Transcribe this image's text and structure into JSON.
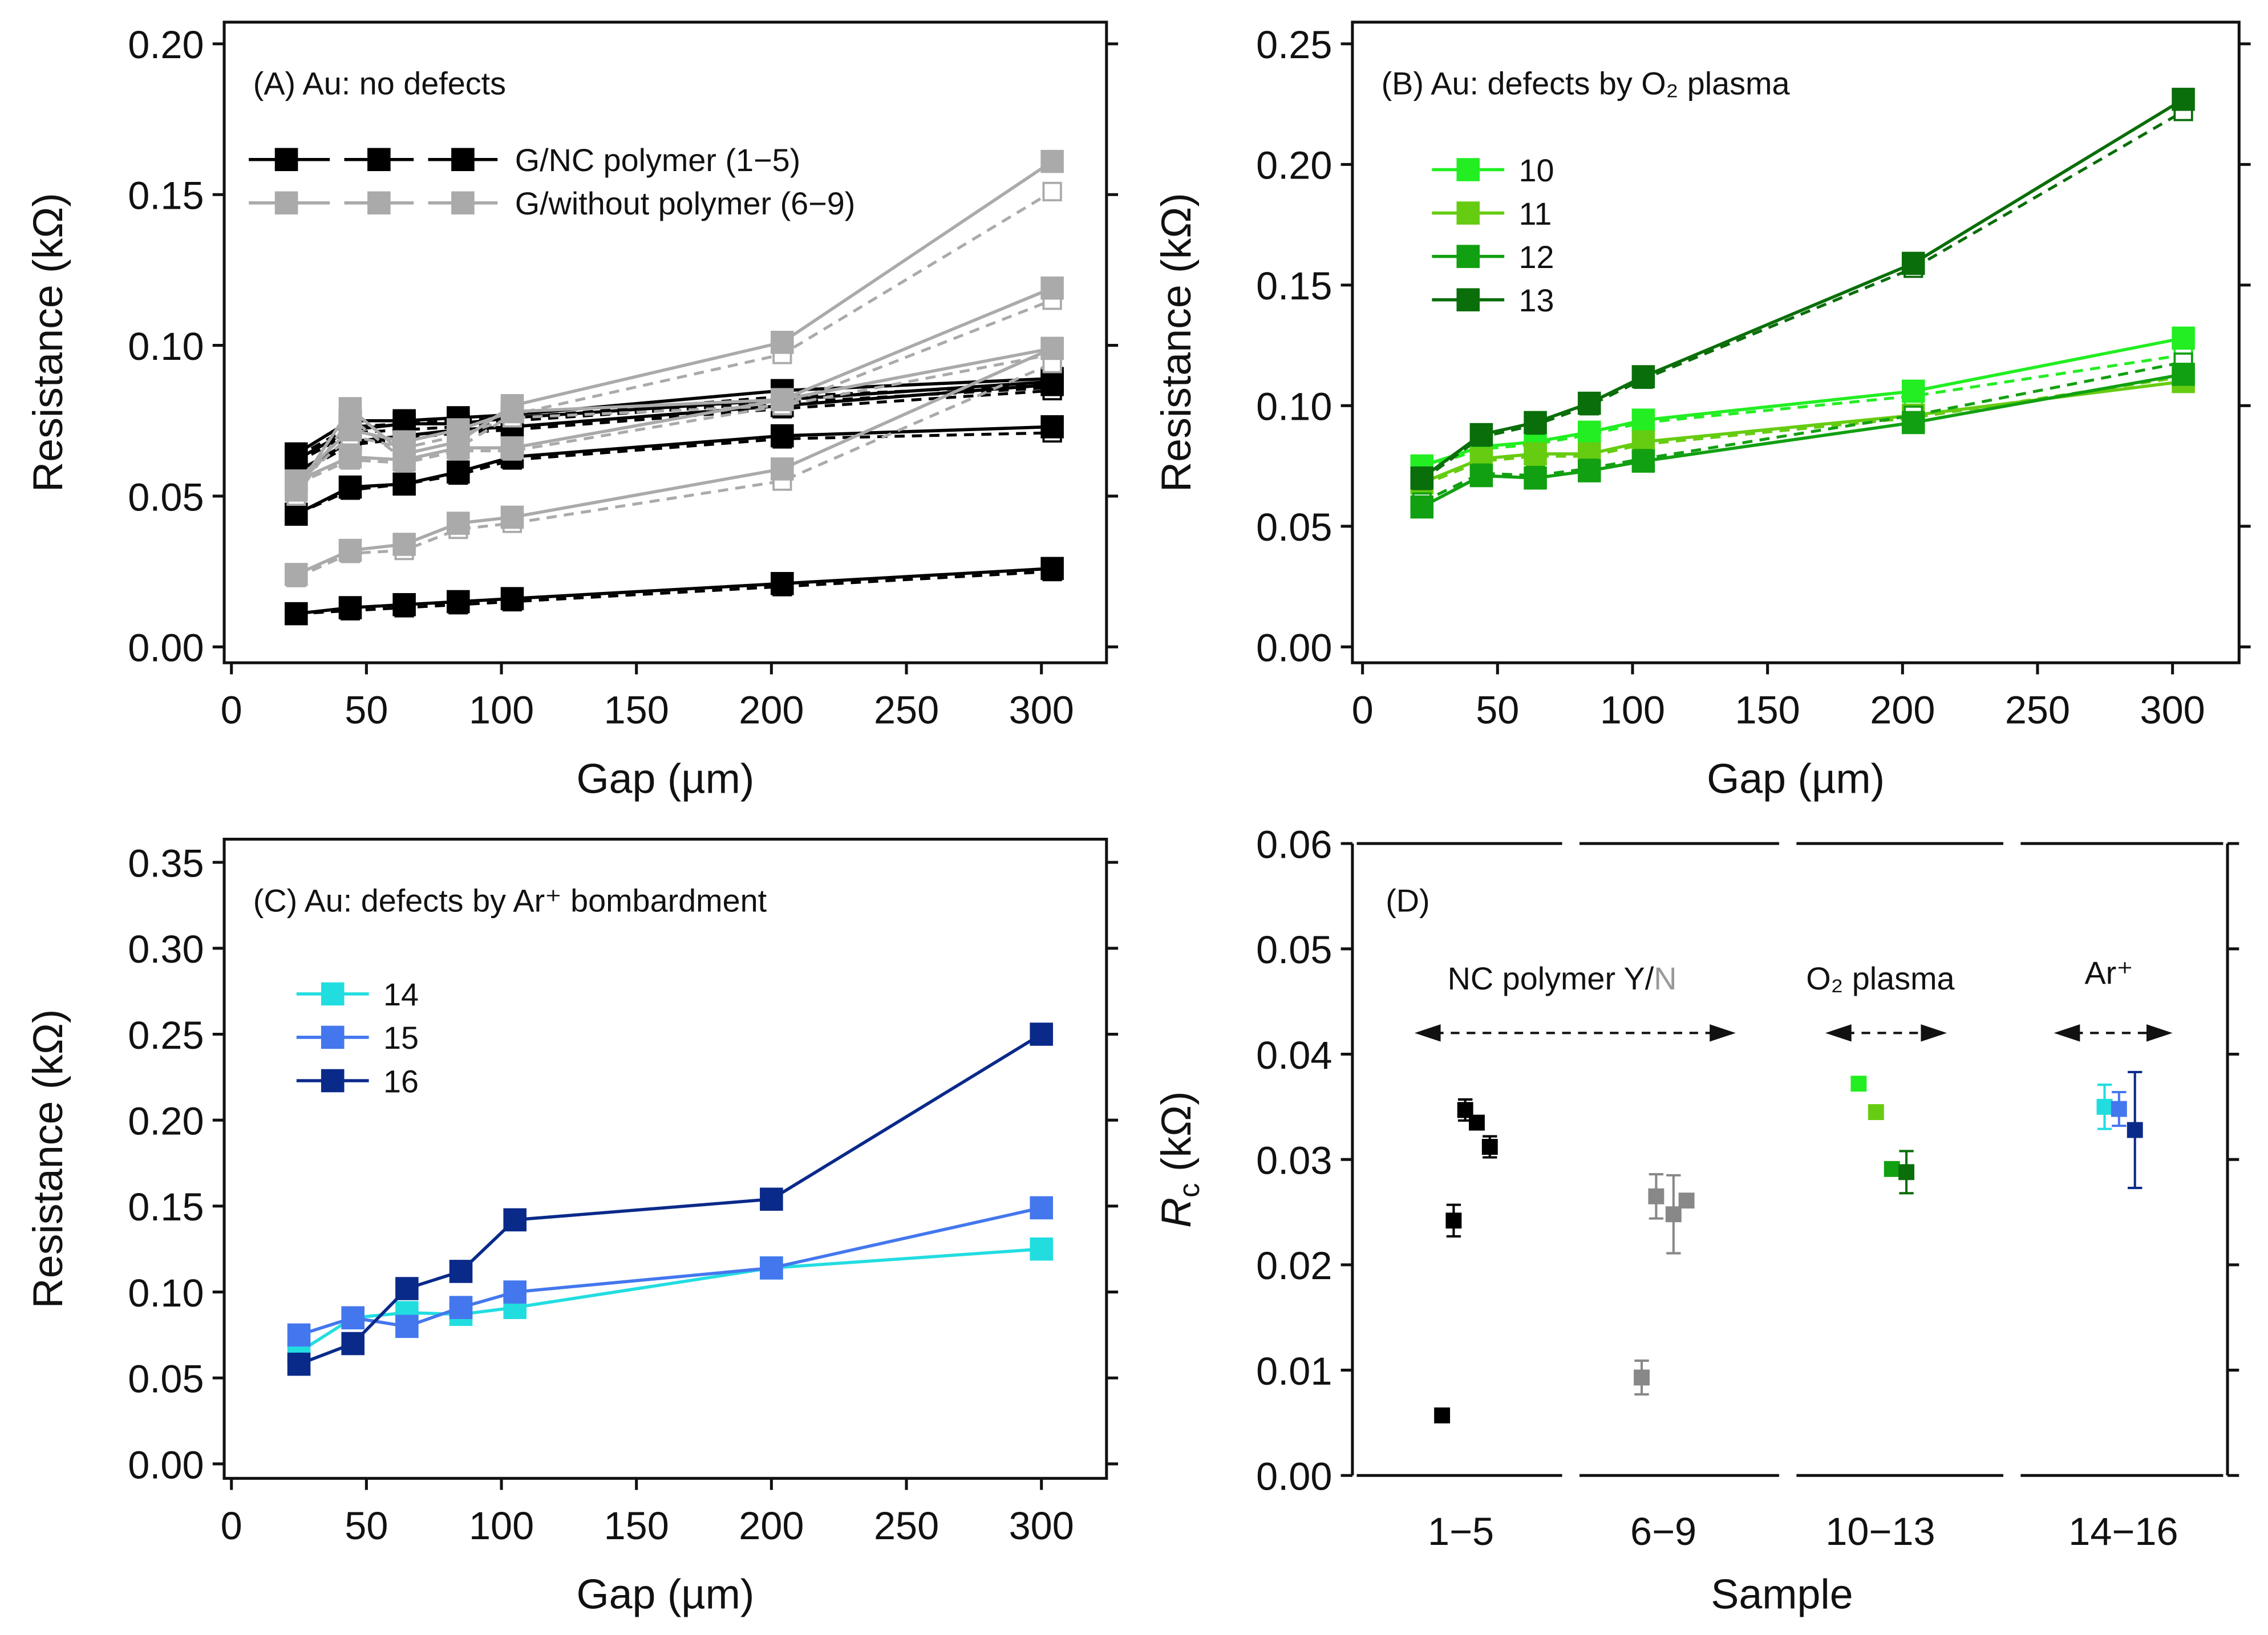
{
  "chart_data": [
    {
      "panel": "A",
      "type": "line",
      "title": "(A) Au: no defects",
      "xlabel": "Gap (µm)",
      "ylabel": "Resistance (kΩ)",
      "xlim": [
        0,
        330
      ],
      "ylim": [
        0,
        0.2
      ],
      "xticks": [
        "0",
        "50",
        "100",
        "150",
        "200",
        "250",
        "300"
      ],
      "yticks": [
        "0.00",
        "0.05",
        "0.10",
        "0.15",
        "0.20"
      ],
      "legend": {
        "placement": "top-left",
        "entries": [
          {
            "label": "G/NC polymer (1−5)",
            "color": "#000000"
          },
          {
            "label": "G/without polymer (6−9)",
            "color": "#aaaaaa"
          }
        ]
      },
      "x": [
        24,
        44,
        64,
        84,
        104,
        204,
        304
      ],
      "series": [
        {
          "group": "G/NC polymer (1−5)",
          "color": "#000000",
          "values": [
            0.064,
            0.075,
            0.075,
            0.076,
            0.077,
            0.085,
            0.089
          ],
          "dashed": [
            0.063,
            0.073,
            0.074,
            0.075,
            0.076,
            0.083,
            0.087
          ]
        },
        {
          "group": "G/NC polymer (1−5)",
          "color": "#000000",
          "values": [
            0.062,
            0.072,
            0.074,
            0.074,
            0.076,
            0.082,
            0.088
          ],
          "dashed": [
            0.061,
            0.071,
            0.072,
            0.073,
            0.075,
            0.081,
            0.086
          ]
        },
        {
          "group": "G/NC polymer (1−5)",
          "color": "#000000",
          "values": [
            0.058,
            0.068,
            0.07,
            0.072,
            0.073,
            0.08,
            0.087
          ],
          "dashed": [
            0.057,
            0.067,
            0.069,
            0.071,
            0.072,
            0.079,
            0.085
          ]
        },
        {
          "group": "G/NC polymer (1−5)",
          "color": "#000000",
          "values": [
            0.044,
            0.053,
            0.054,
            0.058,
            0.063,
            0.07,
            0.073
          ],
          "dashed": [
            0.044,
            0.052,
            0.054,
            0.057,
            0.062,
            0.069,
            0.071
          ]
        },
        {
          "group": "G/NC polymer (1−5)",
          "color": "#000000",
          "values": [
            0.011,
            0.013,
            0.014,
            0.015,
            0.016,
            0.021,
            0.026
          ],
          "dashed": [
            0.011,
            0.012,
            0.013,
            0.014,
            0.015,
            0.02,
            0.025
          ]
        },
        {
          "group": "G/without polymer (6−9)",
          "color": "#aaaaaa",
          "values": [
            0.052,
            0.079,
            0.064,
            0.068,
            0.08,
            0.101,
            0.161
          ],
          "dashed": [
            0.05,
            0.076,
            0.062,
            0.066,
            0.077,
            0.097,
            0.151
          ]
        },
        {
          "group": "G/without polymer (6−9)",
          "color": "#aaaaaa",
          "values": [
            0.055,
            0.072,
            0.068,
            0.072,
            0.078,
            0.082,
            0.119
          ],
          "dashed": [
            0.054,
            0.07,
            0.066,
            0.07,
            0.076,
            0.08,
            0.115
          ]
        },
        {
          "group": "G/without polymer (6−9)",
          "color": "#aaaaaa",
          "values": [
            0.055,
            0.063,
            0.062,
            0.066,
            0.066,
            0.082,
            0.099
          ],
          "dashed": [
            0.054,
            0.062,
            0.061,
            0.065,
            0.065,
            0.08,
            0.097
          ]
        },
        {
          "group": "G/without polymer (6−9)",
          "color": "#aaaaaa",
          "values": [
            0.024,
            0.032,
            0.034,
            0.041,
            0.043,
            0.059,
            0.099
          ],
          "dashed": [
            0.023,
            0.031,
            0.032,
            0.039,
            0.041,
            0.055,
            0.094
          ]
        }
      ]
    },
    {
      "panel": "B",
      "type": "line",
      "title": "(B) Au: defects by O₂ plasma",
      "xlabel": "Gap (µm)",
      "ylabel": "Resistance (kΩ)",
      "xlim": [
        0,
        330
      ],
      "ylim": [
        0,
        0.25
      ],
      "xticks": [
        "0",
        "50",
        "100",
        "150",
        "200",
        "250",
        "300"
      ],
      "yticks": [
        "0.00",
        "0.05",
        "0.10",
        "0.15",
        "0.20",
        "0.25"
      ],
      "legend": {
        "placement": "top-left"
      },
      "x": [
        22,
        44,
        64,
        84,
        104,
        204,
        304
      ],
      "series": [
        {
          "name": "10",
          "color": "#22ee22",
          "values": [
            0.075,
            0.083,
            0.085,
            0.089,
            0.094,
            0.106,
            0.128
          ],
          "dashed": [
            0.074,
            0.082,
            0.084,
            0.088,
            0.093,
            0.104,
            0.121
          ]
        },
        {
          "name": "11",
          "color": "#66cc11",
          "values": [
            0.068,
            0.078,
            0.08,
            0.08,
            0.085,
            0.096,
            0.11
          ],
          "dashed": [
            0.067,
            0.077,
            0.079,
            0.079,
            0.084,
            0.095,
            0.112
          ]
        },
        {
          "name": "12",
          "color": "#11a011",
          "values": [
            0.058,
            0.071,
            0.07,
            0.073,
            0.077,
            0.093,
            0.113
          ],
          "dashed": [
            0.06,
            0.072,
            0.071,
            0.074,
            0.078,
            0.096,
            0.118
          ]
        },
        {
          "name": "13",
          "color": "#0a6e0a",
          "values": [
            0.07,
            0.088,
            0.093,
            0.101,
            0.112,
            0.159,
            0.227
          ],
          "dashed": [
            0.069,
            0.087,
            0.092,
            0.1,
            0.111,
            0.157,
            0.222
          ]
        }
      ]
    },
    {
      "panel": "C",
      "type": "line",
      "title": "(C) Au: defects by Ar⁺ bombardment",
      "xlabel": "Gap (µm)",
      "ylabel": "Resistance (kΩ)",
      "xlim": [
        0,
        330
      ],
      "ylim": [
        0,
        0.35
      ],
      "xticks": [
        "0",
        "50",
        "100",
        "150",
        "200",
        "250",
        "300"
      ],
      "yticks": [
        "0.00",
        "0.05",
        "0.10",
        "0.15",
        "0.20",
        "0.25",
        "0.30",
        "0.35"
      ],
      "legend": {
        "placement": "top-left"
      },
      "x": [
        25,
        45,
        65,
        85,
        105,
        200,
        300
      ],
      "series": [
        {
          "name": "14",
          "color": "#22dde0",
          "values": [
            0.065,
            0.085,
            0.088,
            0.087,
            0.091,
            0.114,
            0.125
          ]
        },
        {
          "name": "15",
          "color": "#4477ee",
          "values": [
            0.075,
            0.085,
            0.08,
            0.091,
            0.1,
            0.114,
            0.149
          ]
        },
        {
          "name": "16",
          "color": "#0a2a8a",
          "values": [
            0.058,
            0.07,
            0.102,
            0.112,
            0.142,
            0.154,
            0.25
          ]
        }
      ]
    },
    {
      "panel": "D",
      "type": "scatter",
      "title": "(D)",
      "xlabel": "Sample",
      "ylabel_main": "R",
      "ylabel_sub": "c",
      "ylabel_unit": "(kΩ)",
      "ylim": [
        0,
        0.06
      ],
      "yticks": [
        "0.00",
        "0.01",
        "0.02",
        "0.03",
        "0.04",
        "0.05",
        "0.06"
      ],
      "categories": [
        "1−5",
        "6−9",
        "10−13",
        "14−16"
      ],
      "annotations": [
        {
          "text": "NC polymer Y/",
          "text_gray": "N"
        },
        {
          "text": "O₂ plasma"
        },
        {
          "text": "Ar⁺"
        }
      ],
      "points": [
        {
          "sample": 1,
          "value": 0.0057,
          "err": 0,
          "color": "#000000"
        },
        {
          "sample": 2,
          "value": 0.0242,
          "err": 0.0015,
          "color": "#000000"
        },
        {
          "sample": 3,
          "value": 0.0347,
          "err": 0.001,
          "color": "#000000"
        },
        {
          "sample": 4,
          "value": 0.0335,
          "err": 0,
          "color": "#000000"
        },
        {
          "sample": 5,
          "value": 0.0312,
          "err": 0.001,
          "color": "#000000"
        },
        {
          "sample": 6,
          "value": 0.0093,
          "err": 0.0016,
          "color": "#888888"
        },
        {
          "sample": 7,
          "value": 0.0265,
          "err": 0.0021,
          "color": "#888888"
        },
        {
          "sample": 8,
          "value": 0.0248,
          "err": 0.0037,
          "color": "#888888"
        },
        {
          "sample": 9,
          "value": 0.0261,
          "err": 0,
          "color": "#888888"
        },
        {
          "sample": 10,
          "value": 0.0372,
          "err": 0,
          "color": "#22ee22"
        },
        {
          "sample": 11,
          "value": 0.0345,
          "err": 0,
          "color": "#66cc11"
        },
        {
          "sample": 12,
          "value": 0.0291,
          "err": 0,
          "color": "#11a011"
        },
        {
          "sample": 13,
          "value": 0.0288,
          "err": 0.002,
          "color": "#0a6e0a"
        },
        {
          "sample": 14,
          "value": 0.035,
          "err": 0.0021,
          "color": "#22dde0"
        },
        {
          "sample": 15,
          "value": 0.0348,
          "err": 0.0016,
          "color": "#4477ee"
        },
        {
          "sample": 16,
          "value": 0.0328,
          "err": 0.0055,
          "color": "#0a2a8a"
        }
      ]
    }
  ]
}
